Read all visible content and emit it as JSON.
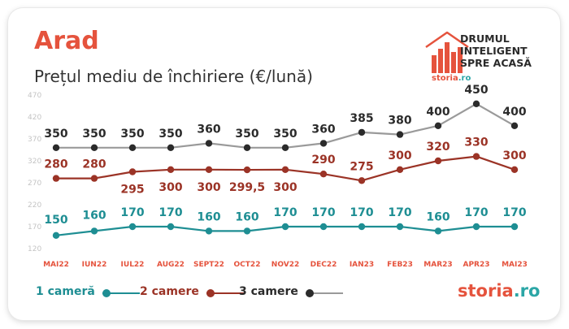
{
  "header": {
    "city": "Arad",
    "subtitle": "Prețul mediu de închiriere (€/lună)"
  },
  "brand": {
    "tagline": [
      "DRUMUL",
      "INTELIGENT",
      "SPRE ACASĂ"
    ],
    "name": "storia",
    "tld": ".ro",
    "primary_color": "#e5533d",
    "accent_color": "#2ba6a6"
  },
  "chart_data": {
    "type": "line",
    "categories": [
      "MAI22",
      "IUN22",
      "IUL22",
      "AUG22",
      "SEPT22",
      "OCT22",
      "NOV22",
      "DEC22",
      "IAN23",
      "FEB23",
      "MAR23",
      "APR23",
      "MAI23"
    ],
    "yticks": [
      120,
      170,
      220,
      270,
      320,
      370,
      420,
      470
    ],
    "ylim": [
      120,
      470
    ],
    "grid": false,
    "legend_position": "bottom-left",
    "series": [
      {
        "name": "1 cameră",
        "color": "#1e8e93",
        "label_color": "#1e8e93",
        "values": [
          150,
          160,
          170,
          170,
          160,
          160,
          170,
          170,
          170,
          170,
          160,
          170,
          170
        ],
        "labels": [
          "150",
          "160",
          "170",
          "170",
          "160",
          "160",
          "170",
          "170",
          "170",
          "170",
          "160",
          "170",
          "170"
        ]
      },
      {
        "name": "2 camere",
        "color": "#9b3326",
        "label_color": "#9b3326",
        "values": [
          280,
          280,
          295,
          300,
          300,
          299.5,
          300,
          290,
          275,
          300,
          320,
          330,
          300
        ],
        "labels": [
          "280",
          "280",
          "295",
          "300",
          "300",
          "299,5",
          "300",
          "290",
          "275",
          "300",
          "320",
          "330",
          "300"
        ]
      },
      {
        "name": "3 camere",
        "color": "#9a9a9a",
        "label_color": "#2b2b2b",
        "values": [
          350,
          350,
          350,
          350,
          360,
          350,
          350,
          360,
          385,
          380,
          400,
          450,
          400
        ],
        "labels": [
          "350",
          "350",
          "350",
          "350",
          "360",
          "350",
          "350",
          "360",
          "385",
          "380",
          "400",
          "450",
          "400"
        ]
      }
    ]
  }
}
